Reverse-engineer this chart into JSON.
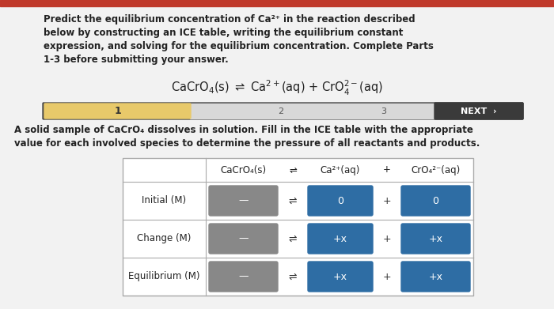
{
  "page_bg": "#e8e8e8",
  "content_bg": "#f5f5f5",
  "title_text_line1": "Predict the equilibrium concentration of Ca²⁺ in the reaction described",
  "title_text_line2": "below by constructing an ICE table, writing the equilibrium constant",
  "title_text_line3": "expression, and solving for the equilibrium concentration. Complete Parts",
  "title_text_line4": "1-3 before submitting your answer.",
  "equation_plain": "CaCrO",
  "progress_bar": {
    "dark_color": "#4a4a4a",
    "yellow_color": "#e8c96a",
    "light_color": "#d8d8d8",
    "next_color": "#3a3a3a",
    "label1": "1",
    "label2": "2",
    "label3": "3",
    "label_next": "NEXT  ›"
  },
  "subtitle_line1": "A solid sample of CaCrO₄ dissolves in solution. Fill in the ICE table with the appropriate",
  "subtitle_line2": "value for each involved species to determine the pressure of all reactants and products.",
  "ice_table": {
    "col_headers": [
      "CaCrO₄(s)",
      "⇌",
      "Ca²⁺(aq)",
      "+",
      "CrO₄²⁻(aq)"
    ],
    "row_headers": [
      "Initial (M)",
      "Change (M)",
      "Equilibrium (M)"
    ],
    "ca_cells": [
      "0",
      "+x",
      "+x"
    ],
    "cro_cells": [
      "0",
      "+x",
      "+x"
    ],
    "solid_symbol": "—",
    "cell_color_solid": "#888888",
    "cell_color_filled": "#2e6da4",
    "cell_text_color": "#ffffff",
    "table_bg": "#ffffff",
    "border_color": "#aaaaaa"
  },
  "top_red_color": "#c0392b",
  "font_size_title": 8.5,
  "font_size_eq": 10.5,
  "font_size_bar": 8,
  "font_size_table": 8.5
}
